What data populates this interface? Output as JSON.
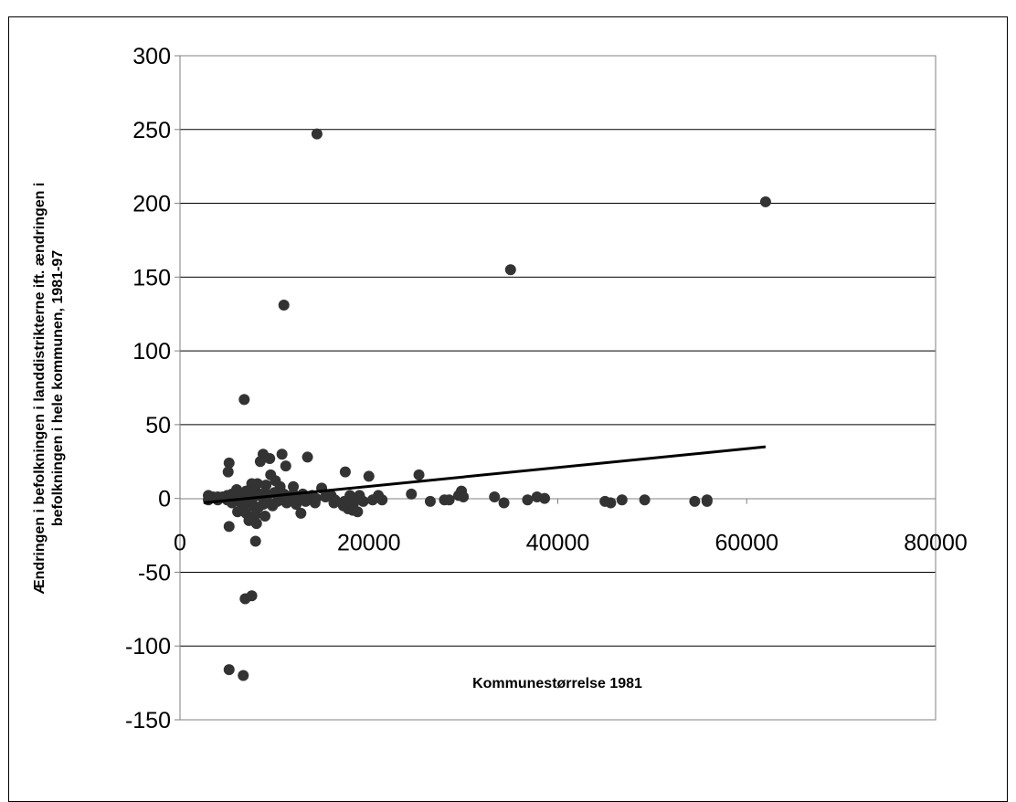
{
  "chart_data": {
    "type": "scatter",
    "title": "",
    "xlabel": "Kommunestørrelse 1981",
    "ylabel_lines": [
      "Ændringen i befolkningen i landdistrikterne ift. ændringen i",
      "befolkningen i hele kommunen, 1981-97"
    ],
    "xlim": [
      0,
      80000
    ],
    "ylim": [
      -150,
      300
    ],
    "x_ticks": [
      0,
      20000,
      40000,
      60000,
      80000
    ],
    "y_ticks": [
      300,
      250,
      200,
      150,
      100,
      50,
      0,
      -50,
      -100,
      -150
    ],
    "grid": "horizontal",
    "legend": "none",
    "marker_color": "#333333",
    "trendline": {
      "x": [
        2500,
        62000
      ],
      "y": [
        -3,
        35
      ],
      "color": "#000000"
    },
    "points": [
      [
        14500,
        247
      ],
      [
        62000,
        201
      ],
      [
        35000,
        155
      ],
      [
        11000,
        131
      ],
      [
        6800,
        67
      ],
      [
        8800,
        30
      ],
      [
        10800,
        30
      ],
      [
        13500,
        28
      ],
      [
        9500,
        27
      ],
      [
        8500,
        25
      ],
      [
        11200,
        22
      ],
      [
        5200,
        24
      ],
      [
        5100,
        18
      ],
      [
        17500,
        18
      ],
      [
        20000,
        15
      ],
      [
        25300,
        16
      ],
      [
        9600,
        16
      ],
      [
        10100,
        12
      ],
      [
        7600,
        10
      ],
      [
        8200,
        10
      ],
      [
        9100,
        9
      ],
      [
        10600,
        8
      ],
      [
        12000,
        8
      ],
      [
        15000,
        7
      ],
      [
        6000,
        6
      ],
      [
        7000,
        5
      ],
      [
        8000,
        5
      ],
      [
        9000,
        4
      ],
      [
        10000,
        4
      ],
      [
        11000,
        3
      ],
      [
        12000,
        3
      ],
      [
        13000,
        3
      ],
      [
        14000,
        2
      ],
      [
        16000,
        2
      ],
      [
        18000,
        2
      ],
      [
        19000,
        2
      ],
      [
        21000,
        2
      ],
      [
        24500,
        3
      ],
      [
        29800,
        5
      ],
      [
        29500,
        2
      ],
      [
        30000,
        1
      ],
      [
        3000,
        2
      ],
      [
        3500,
        1
      ],
      [
        4000,
        1
      ],
      [
        4500,
        1
      ],
      [
        5000,
        2
      ],
      [
        5500,
        3
      ],
      [
        6200,
        2
      ],
      [
        6600,
        1
      ],
      [
        7200,
        1
      ],
      [
        7800,
        1
      ],
      [
        8400,
        2
      ],
      [
        9200,
        1
      ],
      [
        10400,
        1
      ],
      [
        11600,
        1
      ],
      [
        12400,
        1
      ],
      [
        13400,
        0
      ],
      [
        14400,
        0
      ],
      [
        15400,
        1
      ],
      [
        16400,
        -1
      ],
      [
        17400,
        -2
      ],
      [
        18400,
        -3
      ],
      [
        19400,
        -2
      ],
      [
        20400,
        -1
      ],
      [
        21400,
        -1
      ],
      [
        26500,
        -2
      ],
      [
        28000,
        -1
      ],
      [
        28500,
        -1
      ],
      [
        33300,
        1
      ],
      [
        34300,
        -3
      ],
      [
        36800,
        -1
      ],
      [
        37800,
        1
      ],
      [
        38600,
        0
      ],
      [
        45000,
        -2
      ],
      [
        45600,
        -3
      ],
      [
        46800,
        -1
      ],
      [
        49200,
        -1
      ],
      [
        54500,
        -2
      ],
      [
        55800,
        -2
      ],
      [
        55800,
        -1
      ],
      [
        3000,
        -1
      ],
      [
        4000,
        -1
      ],
      [
        5000,
        -1
      ],
      [
        5500,
        -3
      ],
      [
        6300,
        -2
      ],
      [
        6800,
        -4
      ],
      [
        7300,
        -3
      ],
      [
        7800,
        -5
      ],
      [
        8300,
        -6
      ],
      [
        8800,
        -4
      ],
      [
        9300,
        -3
      ],
      [
        9800,
        -5
      ],
      [
        10300,
        -2
      ],
      [
        10800,
        -1
      ],
      [
        11300,
        -3
      ],
      [
        12300,
        -4
      ],
      [
        13300,
        -2
      ],
      [
        14300,
        -3
      ],
      [
        16300,
        -3
      ],
      [
        17300,
        -5
      ],
      [
        17800,
        -7
      ],
      [
        18300,
        -8
      ],
      [
        18800,
        -9
      ],
      [
        6100,
        -9
      ],
      [
        7000,
        -10
      ],
      [
        8000,
        -11
      ],
      [
        9000,
        -12
      ],
      [
        12800,
        -10
      ],
      [
        7300,
        -15
      ],
      [
        8100,
        -17
      ],
      [
        5200,
        -19
      ],
      [
        8000,
        -29
      ],
      [
        6900,
        -68
      ],
      [
        7600,
        -66
      ],
      [
        5200,
        -116
      ],
      [
        6700,
        -120
      ]
    ]
  }
}
